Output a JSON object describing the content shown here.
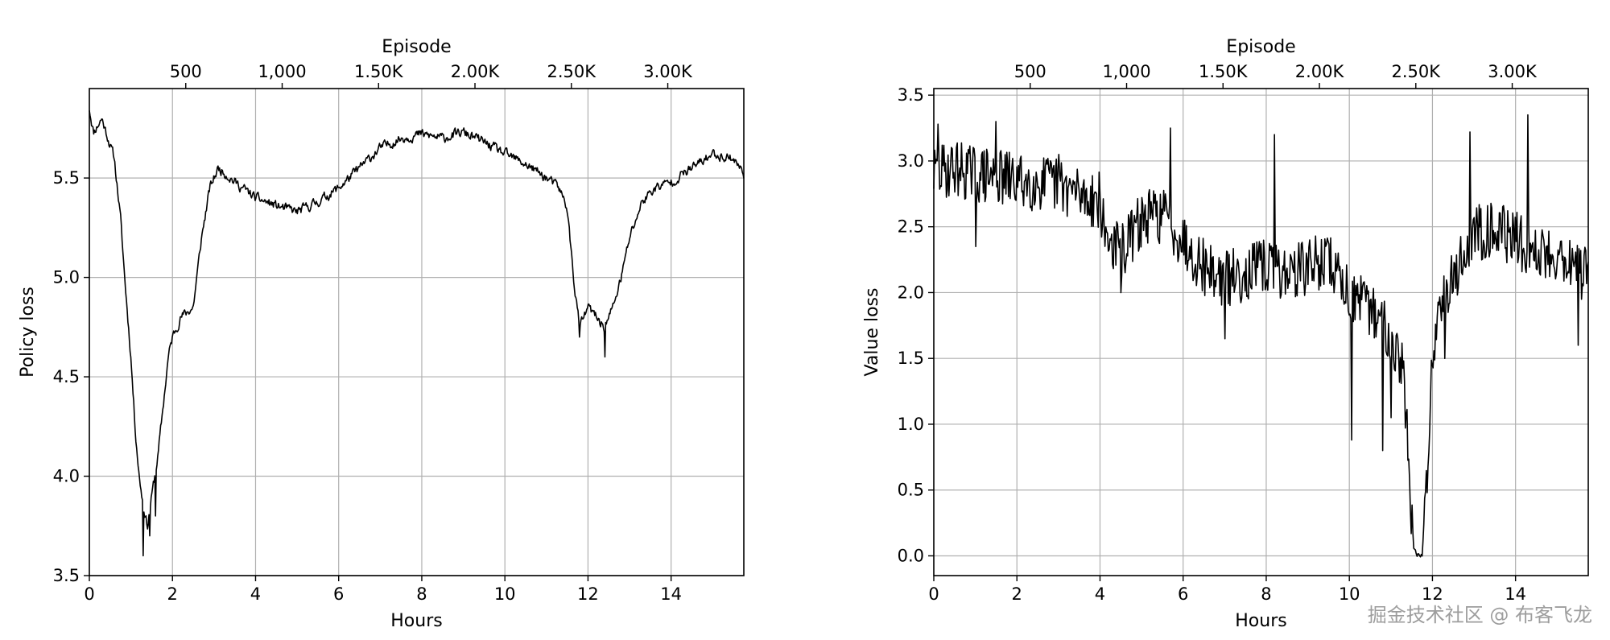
{
  "watermark": "掘金技术社区 @ 布客飞龙",
  "chart_data": [
    {
      "type": "line",
      "xlabel": "Hours",
      "ylabel": "Policy loss",
      "top_xlabel": "Episode",
      "xlim": [
        0,
        15.75
      ],
      "ylim": [
        3.5,
        5.95
      ],
      "xticks": [
        0,
        2,
        4,
        6,
        8,
        10,
        12,
        14
      ],
      "yticks": [
        3.5,
        4.0,
        4.5,
        5.0,
        5.5
      ],
      "yticklabels": [
        "3.5",
        "4.0",
        "4.5",
        "5.0",
        "5.5"
      ],
      "top_ticks": [
        {
          "label": "500",
          "hours": 2.32
        },
        {
          "label": "1,000",
          "hours": 4.64
        },
        {
          "label": "1.50K",
          "hours": 6.96
        },
        {
          "label": "2.00K",
          "hours": 9.28
        },
        {
          "label": "2.50K",
          "hours": 11.6
        },
        {
          "label": "3.00K",
          "hours": 13.92
        }
      ],
      "grid": true,
      "line_color": "#000000",
      "grid_color": "#b0b0b0",
      "noise": 0.025,
      "spikes": [
        [
          1.3,
          3.6
        ],
        [
          1.45,
          3.7
        ],
        [
          1.6,
          3.8
        ],
        [
          12.4,
          4.6
        ],
        [
          11.8,
          4.7
        ]
      ],
      "x": [
        0,
        0.1,
        0.3,
        0.45,
        0.6,
        0.75,
        0.85,
        1.0,
        1.1,
        1.2,
        1.3,
        1.4,
        1.5,
        1.65,
        1.8,
        1.9,
        2.0,
        2.2,
        2.5,
        2.7,
        2.9,
        3.1,
        3.3,
        3.5,
        4.0,
        4.5,
        5.0,
        5.5,
        6.0,
        6.5,
        7.0,
        7.5,
        8.0,
        8.5,
        9.0,
        9.5,
        10.0,
        10.5,
        11.0,
        11.3,
        11.5,
        11.65,
        11.8,
        12.0,
        12.2,
        12.4,
        12.6,
        12.8,
        13.0,
        13.3,
        13.6,
        14.0,
        14.5,
        15.0,
        15.5,
        15.75
      ],
      "y": [
        5.85,
        5.73,
        5.8,
        5.7,
        5.6,
        5.3,
        5.0,
        4.6,
        4.25,
        4.0,
        3.85,
        3.75,
        3.9,
        4.1,
        4.4,
        4.6,
        4.7,
        4.8,
        4.85,
        5.2,
        5.45,
        5.55,
        5.52,
        5.48,
        5.4,
        5.36,
        5.33,
        5.38,
        5.45,
        5.55,
        5.65,
        5.7,
        5.72,
        5.7,
        5.73,
        5.68,
        5.62,
        5.57,
        5.5,
        5.45,
        5.35,
        5.0,
        4.75,
        4.85,
        4.8,
        4.75,
        4.85,
        5.0,
        5.2,
        5.38,
        5.45,
        5.48,
        5.55,
        5.62,
        5.6,
        5.52
      ]
    },
    {
      "type": "line",
      "xlabel": "Hours",
      "ylabel": "Value loss",
      "top_xlabel": "Episode",
      "xlim": [
        0,
        15.75
      ],
      "ylim": [
        -0.15,
        3.55
      ],
      "xticks": [
        0,
        2,
        4,
        6,
        8,
        10,
        12,
        14
      ],
      "yticks": [
        0.0,
        0.5,
        1.0,
        1.5,
        2.0,
        2.5,
        3.0,
        3.5
      ],
      "yticklabels": [
        "0.0",
        "0.5",
        "1.0",
        "1.5",
        "2.0",
        "2.5",
        "3.0",
        "3.5"
      ],
      "top_ticks": [
        {
          "label": "500",
          "hours": 2.32
        },
        {
          "label": "1,000",
          "hours": 4.64
        },
        {
          "label": "1.50K",
          "hours": 6.96
        },
        {
          "label": "2.00K",
          "hours": 9.28
        },
        {
          "label": "2.50K",
          "hours": 11.6
        },
        {
          "label": "3.00K",
          "hours": 13.92
        }
      ],
      "grid": true,
      "line_color": "#000000",
      "grid_color": "#b0b0b0",
      "noise": 0.22,
      "spikes": [
        [
          0.1,
          3.28
        ],
        [
          1.0,
          2.35
        ],
        [
          1.5,
          3.3
        ],
        [
          3.0,
          3.05
        ],
        [
          4.5,
          2.0
        ],
        [
          5.7,
          3.25
        ],
        [
          7.0,
          1.65
        ],
        [
          8.2,
          3.2
        ],
        [
          10.05,
          0.88
        ],
        [
          10.8,
          0.8
        ],
        [
          11.0,
          1.05
        ],
        [
          12.3,
          1.5
        ],
        [
          12.9,
          3.22
        ],
        [
          14.3,
          3.35
        ],
        [
          15.5,
          1.6
        ]
      ],
      "x": [
        0,
        0.5,
        1.0,
        2.0,
        3.0,
        3.5,
        4.0,
        4.1,
        4.5,
        5.0,
        5.5,
        6.0,
        6.5,
        7.0,
        7.5,
        8.0,
        8.5,
        9.0,
        9.5,
        10.0,
        10.3,
        10.6,
        11.0,
        11.3,
        11.45,
        11.55,
        11.65,
        11.75,
        11.85,
        12.0,
        12.2,
        12.5,
        13.0,
        13.5,
        14.0,
        14.5,
        15.0,
        15.5,
        15.75
      ],
      "y": [
        2.9,
        2.95,
        2.9,
        2.85,
        2.82,
        2.75,
        2.7,
        2.45,
        2.3,
        2.55,
        2.6,
        2.4,
        2.2,
        2.1,
        2.15,
        2.2,
        2.15,
        2.2,
        2.25,
        2.0,
        1.9,
        1.85,
        1.7,
        1.4,
        0.6,
        0.05,
        0.0,
        0.0,
        0.5,
        1.5,
        2.0,
        2.1,
        2.45,
        2.5,
        2.4,
        2.3,
        2.3,
        2.2,
        2.1
      ]
    }
  ]
}
